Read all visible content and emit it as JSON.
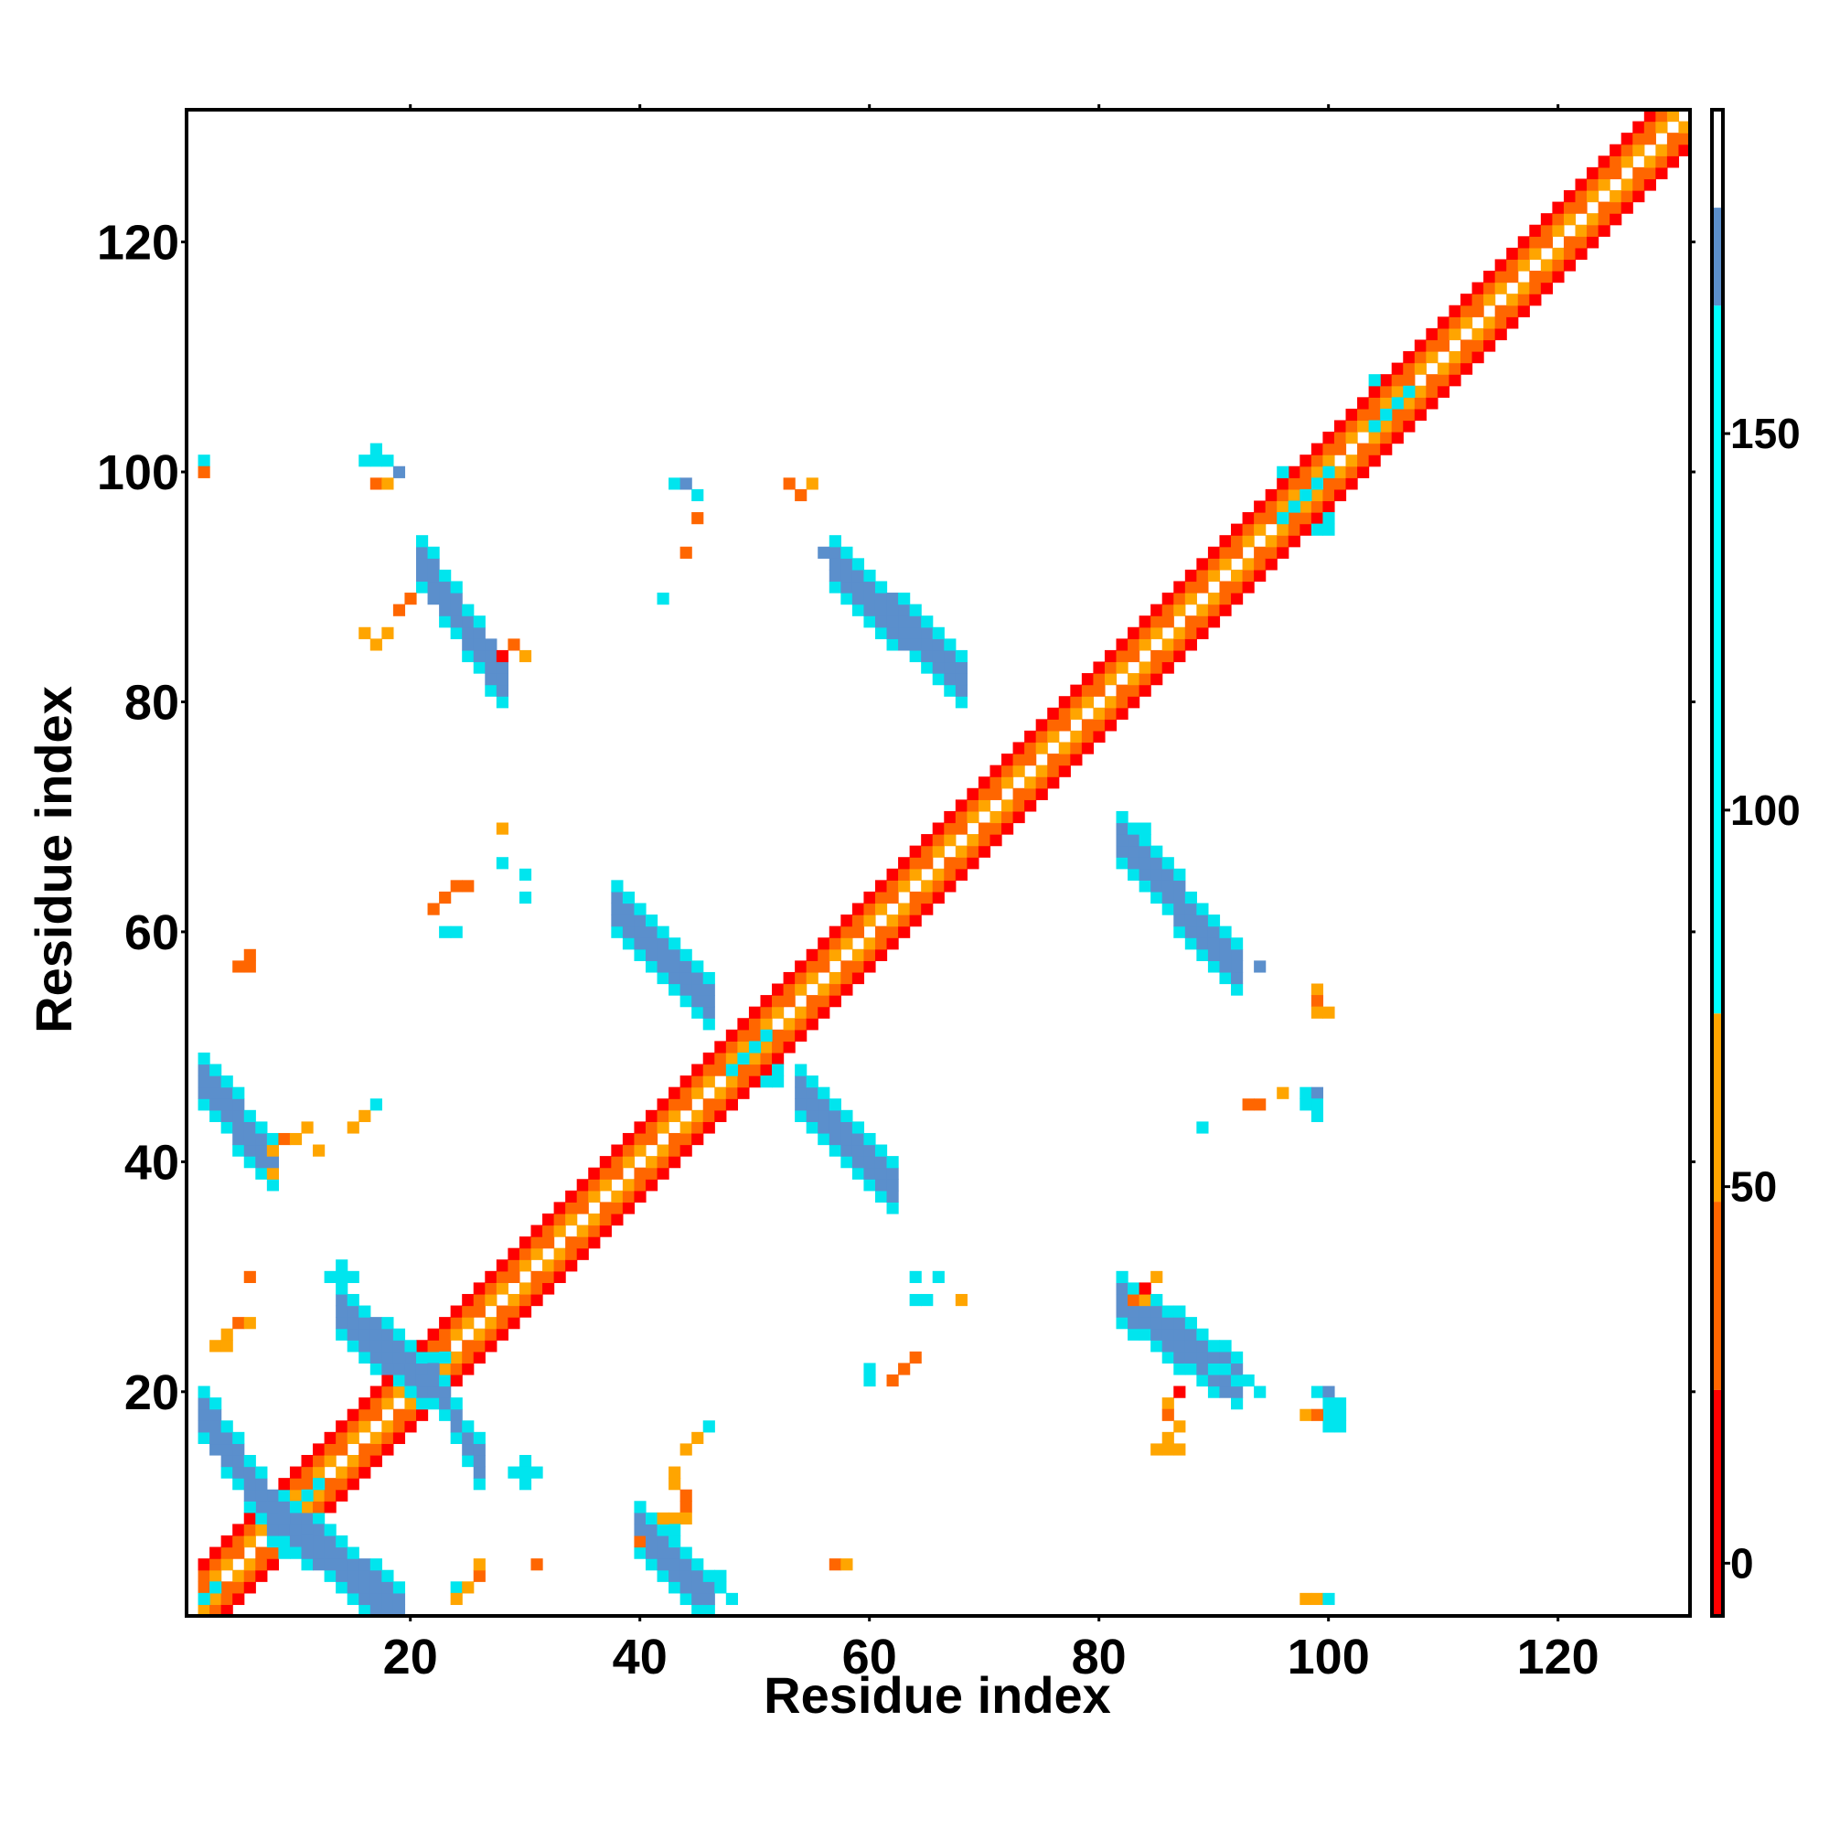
{
  "chart_data": {
    "type": "heatmap",
    "title": "",
    "xlabel": "Residue index",
    "ylabel": "Residue index",
    "xlim": [
      1,
      131
    ],
    "ylim": [
      1,
      131
    ],
    "x_ticks": [
      20,
      40,
      60,
      80,
      100,
      120
    ],
    "y_ticks": [
      20,
      40,
      60,
      80,
      100,
      120
    ],
    "colorbar": {
      "ticks": [
        0,
        50,
        100,
        150
      ],
      "range": [
        -7,
        193
      ],
      "bands": [
        {
          "from": -7,
          "to": 23,
          "color": "#ff0000"
        },
        {
          "from": 23,
          "to": 48,
          "color": "#ff6600"
        },
        {
          "from": 48,
          "to": 73,
          "color": "#ffa500"
        },
        {
          "from": 73,
          "to": 167,
          "color": "#00ffff"
        },
        {
          "from": 167,
          "to": 180,
          "color": "#5b8fcc"
        },
        {
          "from": 180,
          "to": 193,
          "color": "#ffffff"
        }
      ]
    },
    "palette": {
      "R": "#ff0000",
      "r": "#ff6600",
      "o": "#ffa500",
      "c": "#00e5ee",
      "b": "#5b8fcc"
    },
    "diagonal_band": {
      "x_start": 2,
      "x_end": 131,
      "offsets": [
        -3,
        -2,
        -1,
        0,
        1,
        2,
        3
      ],
      "pattern": [
        "R",
        "r",
        "o",
        "",
        "o",
        "r",
        "R"
      ]
    },
    "regions": [
      {
        "x": [
          2,
          9
        ],
        "y": [
          8,
          18
        ],
        "slope": -1,
        "width": 2.5,
        "color": "b"
      },
      {
        "x": [
          9,
          19
        ],
        "y": [
          1,
          9
        ],
        "slope": -1,
        "width": 2.5,
        "color": "b"
      },
      {
        "x": [
          14,
          21
        ],
        "y": [
          21,
          27
        ],
        "slope": -1,
        "width": 2.5,
        "color": "b"
      },
      {
        "x": [
          22,
          26
        ],
        "y": [
          14,
          21
        ],
        "slope": -1,
        "width": 2.0,
        "color": "b"
      },
      {
        "x": [
          2,
          8
        ],
        "y": [
          40,
          47
        ],
        "slope": -1,
        "width": 2.5,
        "color": "b"
      },
      {
        "x": [
          40,
          46
        ],
        "y": [
          2,
          8
        ],
        "slope": -1,
        "width": 2.5,
        "color": "b"
      },
      {
        "x": [
          38,
          46
        ],
        "y": [
          54,
          62
        ],
        "slope": -1,
        "width": 2.5,
        "color": "b"
      },
      {
        "x": [
          54,
          62
        ],
        "y": [
          38,
          46
        ],
        "slope": -1,
        "width": 2.5,
        "color": "b"
      },
      {
        "x": [
          21,
          28
        ],
        "y": [
          82,
          92
        ],
        "slope": -1,
        "width": 2.5,
        "color": "b"
      },
      {
        "x": [
          57,
          68
        ],
        "y": [
          82,
          92
        ],
        "slope": -1,
        "width": 2.5,
        "color": "b"
      },
      {
        "x": [
          82,
          92
        ],
        "y": [
          57,
          68
        ],
        "slope": -1,
        "width": 2.5,
        "color": "b"
      },
      {
        "x": [
          82,
          92
        ],
        "y": [
          21,
          28
        ],
        "slope": -1,
        "width": 2.5,
        "color": "b"
      }
    ],
    "points": [
      {
        "x": 16,
        "y": 101,
        "v": "c"
      },
      {
        "x": 17,
        "y": 101,
        "v": "c"
      },
      {
        "x": 18,
        "y": 101,
        "v": "c"
      },
      {
        "x": 17,
        "y": 102,
        "v": "c"
      },
      {
        "x": 19,
        "y": 100,
        "v": "b"
      },
      {
        "x": 17,
        "y": 99,
        "v": "r"
      },
      {
        "x": 18,
        "y": 99,
        "v": "o"
      },
      {
        "x": 2,
        "y": 101,
        "v": "c"
      },
      {
        "x": 2,
        "y": 100,
        "v": "r"
      },
      {
        "x": 43,
        "y": 99,
        "v": "c"
      },
      {
        "x": 44,
        "y": 99,
        "v": "b"
      },
      {
        "x": 45,
        "y": 98,
        "v": "c"
      },
      {
        "x": 45,
        "y": 96,
        "v": "r"
      },
      {
        "x": 44,
        "y": 93,
        "v": "r"
      },
      {
        "x": 42,
        "y": 89,
        "v": "c"
      },
      {
        "x": 53,
        "y": 99,
        "v": "r"
      },
      {
        "x": 54,
        "y": 98,
        "v": "r"
      },
      {
        "x": 55,
        "y": 99,
        "v": "o"
      },
      {
        "x": 16,
        "y": 86,
        "v": "o"
      },
      {
        "x": 17,
        "y": 85,
        "v": "o"
      },
      {
        "x": 18,
        "y": 86,
        "v": "o"
      },
      {
        "x": 19,
        "y": 88,
        "v": "r"
      },
      {
        "x": 20,
        "y": 89,
        "v": "r"
      },
      {
        "x": 28,
        "y": 84,
        "v": "R"
      },
      {
        "x": 29,
        "y": 85,
        "v": "r"
      },
      {
        "x": 30,
        "y": 84,
        "v": "o"
      },
      {
        "x": 28,
        "y": 69,
        "v": "o"
      },
      {
        "x": 28,
        "y": 66,
        "v": "c"
      },
      {
        "x": 30,
        "y": 65,
        "v": "c"
      },
      {
        "x": 30,
        "y": 63,
        "v": "c"
      },
      {
        "x": 23,
        "y": 63,
        "v": "r"
      },
      {
        "x": 24,
        "y": 64,
        "v": "r"
      },
      {
        "x": 25,
        "y": 64,
        "v": "r"
      },
      {
        "x": 22,
        "y": 62,
        "v": "r"
      },
      {
        "x": 23,
        "y": 60,
        "v": "c"
      },
      {
        "x": 24,
        "y": 60,
        "v": "c"
      },
      {
        "x": 6,
        "y": 58,
        "v": "r"
      },
      {
        "x": 5,
        "y": 57,
        "v": "r"
      },
      {
        "x": 6,
        "y": 57,
        "v": "r"
      },
      {
        "x": 8,
        "y": 41,
        "v": "o"
      },
      {
        "x": 9,
        "y": 42,
        "v": "r"
      },
      {
        "x": 10,
        "y": 42,
        "v": "o"
      },
      {
        "x": 11,
        "y": 43,
        "v": "o"
      },
      {
        "x": 12,
        "y": 41,
        "v": "o"
      },
      {
        "x": 15,
        "y": 43,
        "v": "o"
      },
      {
        "x": 16,
        "y": 44,
        "v": "o"
      },
      {
        "x": 17,
        "y": 45,
        "v": "c"
      },
      {
        "x": 8,
        "y": 39,
        "v": "o"
      },
      {
        "x": 6,
        "y": 30,
        "v": "r"
      },
      {
        "x": 14,
        "y": 31,
        "v": "c"
      },
      {
        "x": 13,
        "y": 30,
        "v": "c"
      },
      {
        "x": 14,
        "y": 30,
        "v": "c"
      },
      {
        "x": 15,
        "y": 30,
        "v": "c"
      },
      {
        "x": 14,
        "y": 29,
        "v": "c"
      },
      {
        "x": 3,
        "y": 24,
        "v": "o"
      },
      {
        "x": 4,
        "y": 25,
        "v": "o"
      },
      {
        "x": 5,
        "y": 26,
        "v": "r"
      },
      {
        "x": 6,
        "y": 26,
        "v": "o"
      },
      {
        "x": 4,
        "y": 24,
        "v": "o"
      },
      {
        "x": 30,
        "y": 14,
        "v": "c"
      },
      {
        "x": 29,
        "y": 13,
        "v": "c"
      },
      {
        "x": 30,
        "y": 13,
        "v": "c"
      },
      {
        "x": 31,
        "y": 13,
        "v": "c"
      },
      {
        "x": 30,
        "y": 12,
        "v": "c"
      },
      {
        "x": 31,
        "y": 5,
        "v": "r"
      },
      {
        "x": 24,
        "y": 3,
        "v": "c"
      },
      {
        "x": 24,
        "y": 2,
        "v": "o"
      },
      {
        "x": 25,
        "y": 3,
        "v": "o"
      },
      {
        "x": 26,
        "y": 4,
        "v": "r"
      },
      {
        "x": 26,
        "y": 5,
        "v": "o"
      },
      {
        "x": 43,
        "y": 13,
        "v": "o"
      },
      {
        "x": 43,
        "y": 12,
        "v": "o"
      },
      {
        "x": 44,
        "y": 11,
        "v": "r"
      },
      {
        "x": 44,
        "y": 10,
        "v": "r"
      },
      {
        "x": 44,
        "y": 9,
        "v": "o"
      },
      {
        "x": 43,
        "y": 9,
        "v": "o"
      },
      {
        "x": 43,
        "y": 8,
        "v": "c"
      },
      {
        "x": 42,
        "y": 9,
        "v": "o"
      },
      {
        "x": 40,
        "y": 7,
        "v": "r"
      },
      {
        "x": 46,
        "y": 17,
        "v": "c"
      },
      {
        "x": 45,
        "y": 16,
        "v": "o"
      },
      {
        "x": 44,
        "y": 15,
        "v": "o"
      },
      {
        "x": 48,
        "y": 2,
        "v": "c"
      },
      {
        "x": 47,
        "y": 3,
        "v": "c"
      },
      {
        "x": 47,
        "y": 4,
        "v": "c"
      },
      {
        "x": 46,
        "y": 1,
        "v": "c"
      },
      {
        "x": 57,
        "y": 5,
        "v": "r"
      },
      {
        "x": 58,
        "y": 5,
        "v": "o"
      },
      {
        "x": 60,
        "y": 21,
        "v": "c"
      },
      {
        "x": 60,
        "y": 22,
        "v": "c"
      },
      {
        "x": 62,
        "y": 21,
        "v": "r"
      },
      {
        "x": 63,
        "y": 22,
        "v": "r"
      },
      {
        "x": 64,
        "y": 23,
        "v": "r"
      },
      {
        "x": 64,
        "y": 28,
        "v": "c"
      },
      {
        "x": 65,
        "y": 28,
        "v": "c"
      },
      {
        "x": 66,
        "y": 30,
        "v": "c"
      },
      {
        "x": 64,
        "y": 30,
        "v": "c"
      },
      {
        "x": 68,
        "y": 28,
        "v": "o"
      },
      {
        "x": 83,
        "y": 28,
        "v": "r"
      },
      {
        "x": 84,
        "y": 29,
        "v": "R"
      },
      {
        "x": 85,
        "y": 30,
        "v": "o"
      },
      {
        "x": 84,
        "y": 28,
        "v": "o"
      },
      {
        "x": 86,
        "y": 19,
        "v": "o"
      },
      {
        "x": 86,
        "y": 18,
        "v": "r"
      },
      {
        "x": 86,
        "y": 16,
        "v": "o"
      },
      {
        "x": 87,
        "y": 17,
        "v": "o"
      },
      {
        "x": 85,
        "y": 15,
        "v": "o"
      },
      {
        "x": 86,
        "y": 15,
        "v": "o"
      },
      {
        "x": 87,
        "y": 15,
        "v": "o"
      },
      {
        "x": 87,
        "y": 20,
        "v": "R"
      },
      {
        "x": 90,
        "y": 22,
        "v": "c"
      },
      {
        "x": 91,
        "y": 22,
        "v": "c"
      },
      {
        "x": 92,
        "y": 21,
        "v": "c"
      },
      {
        "x": 93,
        "y": 21,
        "v": "c"
      },
      {
        "x": 94,
        "y": 20,
        "v": "c"
      },
      {
        "x": 91,
        "y": 20,
        "v": "b"
      },
      {
        "x": 92,
        "y": 20,
        "v": "b"
      },
      {
        "x": 99,
        "y": 20,
        "v": "c"
      },
      {
        "x": 100,
        "y": 20,
        "v": "b"
      },
      {
        "x": 100,
        "y": 19,
        "v": "c"
      },
      {
        "x": 101,
        "y": 19,
        "v": "c"
      },
      {
        "x": 101,
        "y": 18,
        "v": "c"
      },
      {
        "x": 100,
        "y": 18,
        "v": "c"
      },
      {
        "x": 101,
        "y": 17,
        "v": "c"
      },
      {
        "x": 100,
        "y": 17,
        "v": "c"
      },
      {
        "x": 98,
        "y": 18,
        "v": "o"
      },
      {
        "x": 99,
        "y": 18,
        "v": "r"
      },
      {
        "x": 98,
        "y": 2,
        "v": "o"
      },
      {
        "x": 99,
        "y": 2,
        "v": "o"
      },
      {
        "x": 100,
        "y": 2,
        "v": "c"
      },
      {
        "x": 99,
        "y": 55,
        "v": "o"
      },
      {
        "x": 99,
        "y": 54,
        "v": "r"
      },
      {
        "x": 100,
        "y": 53,
        "v": "o"
      },
      {
        "x": 99,
        "y": 53,
        "v": "o"
      },
      {
        "x": 93,
        "y": 45,
        "v": "r"
      },
      {
        "x": 94,
        "y": 45,
        "v": "r"
      },
      {
        "x": 96,
        "y": 46,
        "v": "o"
      },
      {
        "x": 98,
        "y": 46,
        "v": "c"
      },
      {
        "x": 99,
        "y": 46,
        "v": "b"
      },
      {
        "x": 99,
        "y": 45,
        "v": "c"
      },
      {
        "x": 99,
        "y": 44,
        "v": "c"
      },
      {
        "x": 98,
        "y": 45,
        "v": "c"
      },
      {
        "x": 89,
        "y": 43,
        "v": "c"
      },
      {
        "x": 94,
        "y": 57,
        "v": "b"
      },
      {
        "x": 82,
        "y": 70,
        "v": "c"
      },
      {
        "x": 83,
        "y": 69,
        "v": "c"
      },
      {
        "x": 84,
        "y": 69,
        "v": "c"
      },
      {
        "x": 56,
        "y": 93,
        "v": "b"
      },
      {
        "x": 21,
        "y": 94,
        "v": "c"
      },
      {
        "x": 22,
        "y": 93,
        "v": "c"
      }
    ],
    "diagonal_blobs": [
      {
        "x": [
          2,
          4
        ],
        "y": [
          1,
          3
        ],
        "color": "c"
      },
      {
        "x": [
          9,
          12
        ],
        "y": [
          9,
          12
        ],
        "color": "c"
      },
      {
        "x": [
          20,
          23
        ],
        "y": [
          20,
          23
        ],
        "color": "c"
      },
      {
        "x": [
          48,
          52
        ],
        "y": [
          47,
          51
        ],
        "color": "c"
      },
      {
        "x": [
          96,
          100
        ],
        "y": [
          95,
          100
        ],
        "color": "c"
      },
      {
        "x": [
          104,
          107
        ],
        "y": [
          104,
          108
        ],
        "color": "c"
      }
    ]
  }
}
